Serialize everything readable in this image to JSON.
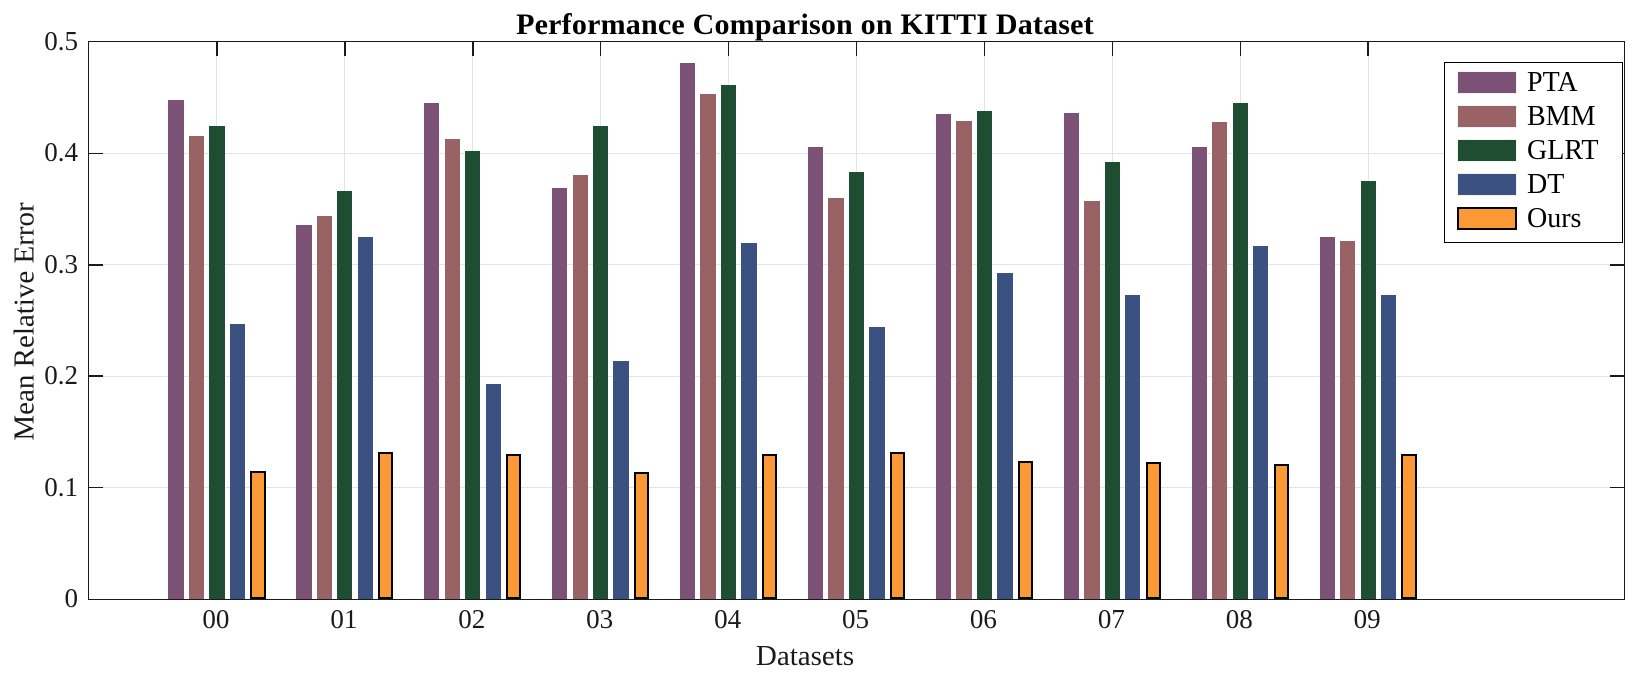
{
  "title": "Performance Comparison on KITTI Dataset",
  "chart_data": {
    "type": "bar",
    "title": "Performance Comparison on KITTI Dataset",
    "xlabel": "Datasets",
    "ylabel": "Mean Relative Error",
    "categories": [
      "00",
      "01",
      "02",
      "03",
      "04",
      "05",
      "06",
      "07",
      "08",
      "09"
    ],
    "series": [
      {
        "name": "PTA",
        "color": "#7B5176",
        "edge": "",
        "values": [
          0.448,
          0.336,
          0.445,
          0.369,
          0.481,
          0.406,
          0.435,
          0.436,
          0.406,
          0.325
        ]
      },
      {
        "name": "BMM",
        "color": "#996365",
        "edge": "",
        "values": [
          0.416,
          0.344,
          0.413,
          0.381,
          0.453,
          0.36,
          0.429,
          0.357,
          0.428,
          0.321
        ]
      },
      {
        "name": "GLRT",
        "color": "#1E4D32",
        "edge": "",
        "values": [
          0.425,
          0.366,
          0.402,
          0.425,
          0.461,
          0.383,
          0.438,
          0.392,
          0.445,
          0.375
        ]
      },
      {
        "name": "DT",
        "color": "#3A5182",
        "edge": "",
        "values": [
          0.247,
          0.325,
          0.193,
          0.214,
          0.32,
          0.244,
          0.293,
          0.273,
          0.317,
          0.273
        ]
      },
      {
        "name": "Ours",
        "color": "#FB9A35",
        "edge": "#000000",
        "values": [
          0.115,
          0.132,
          0.13,
          0.114,
          0.13,
          0.132,
          0.124,
          0.123,
          0.121,
          0.13
        ]
      }
    ],
    "ylim": [
      0,
      0.5
    ],
    "yticks": [
      0,
      0.1,
      0.2,
      0.3,
      0.4,
      0.5
    ],
    "ytick_labels": [
      "0",
      "0.1",
      "0.2",
      "0.3",
      "0.4",
      "0.5"
    ],
    "grid": true,
    "legend_position": "top-right",
    "colors": {
      "gridline": "#e3e3e3",
      "axis": "#1a1a1a",
      "background": "#ffffff"
    }
  }
}
